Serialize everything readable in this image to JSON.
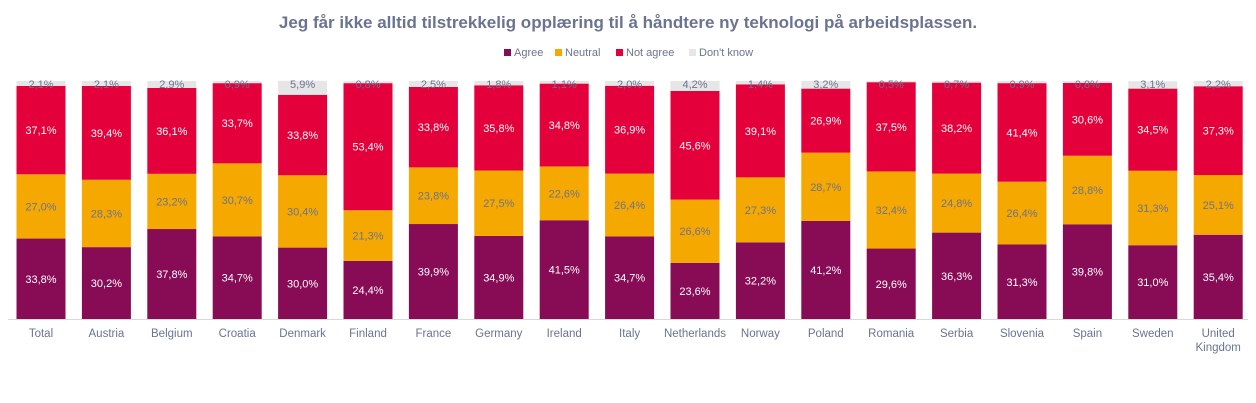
{
  "chart_data": {
    "type": "bar",
    "stacked": true,
    "title": "Jeg får ikke alltid tilstrekkelig opplæring til å håndtere ny teknologi på arbeidsplassen.",
    "legend_position": "top",
    "grid": false,
    "ylim": [
      0,
      100
    ],
    "categories": [
      "Total",
      "Austria",
      "Belgium",
      "Croatia",
      "Denmark",
      "Finland",
      "France",
      "Germany",
      "Ireland",
      "Italy",
      "Netherlands",
      "Norway",
      "Poland",
      "Romania",
      "Serbia",
      "Slovenia",
      "Spain",
      "Sweden",
      "United Kingdom"
    ],
    "series": [
      {
        "name": "Agree",
        "color": "#870b55",
        "label_color": "#ffffff",
        "values": [
          33.8,
          30.2,
          37.8,
          34.7,
          30.0,
          24.4,
          39.9,
          34.9,
          41.5,
          34.7,
          23.6,
          32.2,
          41.2,
          29.6,
          36.3,
          31.3,
          39.8,
          31.0,
          35.4
        ]
      },
      {
        "name": "Neutral",
        "color": "#f5a800",
        "label_color": "#6b7390",
        "values": [
          27.0,
          28.3,
          23.2,
          30.7,
          30.4,
          21.3,
          23.8,
          27.5,
          22.6,
          26.4,
          26.6,
          27.3,
          28.7,
          32.4,
          24.8,
          26.4,
          28.8,
          31.3,
          25.1
        ]
      },
      {
        "name": "Not agree",
        "color": "#e4003a",
        "label_color": "#ffffff",
        "values": [
          37.1,
          39.4,
          36.1,
          33.7,
          33.8,
          53.4,
          33.8,
          35.8,
          34.8,
          36.9,
          45.6,
          39.1,
          26.9,
          37.5,
          38.2,
          41.4,
          30.6,
          34.5,
          37.3
        ]
      },
      {
        "name": "Don't know",
        "color": "#e6e6e6",
        "label_color": "#6b7390",
        "values": [
          2.1,
          2.1,
          2.9,
          0.9,
          5.9,
          0.8,
          2.5,
          1.8,
          1.1,
          2.0,
          4.2,
          1.4,
          3.2,
          0.5,
          0.7,
          0.9,
          0.8,
          3.1,
          2.2
        ]
      }
    ]
  }
}
